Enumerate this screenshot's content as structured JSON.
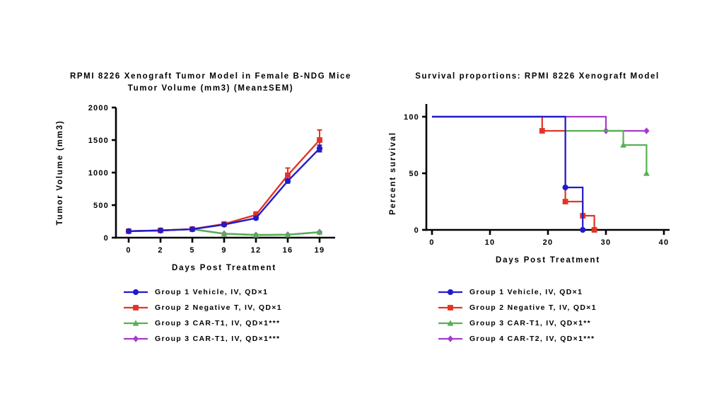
{
  "figure": {
    "background": "#ffffff"
  },
  "colors": {
    "group1_blue": "#221bc9",
    "group2_red": "#e23426",
    "group3_green": "#55b054",
    "group4_purple": "#a43bcb",
    "axis_black": "#000000"
  },
  "chart_data": [
    {
      "type": "line",
      "x_mode": "categorical",
      "title_lines": [
        "RPMI 8226 Xenograft Tumor Model in Female B-NDG Mice",
        "Tumor Volume (mm3) (Mean±SEM)"
      ],
      "xlabel": "Days Post Treatment",
      "ylabel": "Tumor Volume (mm3)",
      "categories": [
        0,
        2,
        5,
        9,
        12,
        16,
        19
      ],
      "ylim": [
        0,
        2000
      ],
      "yticks": [
        0,
        500,
        1000,
        1500,
        2000
      ],
      "grid": false,
      "legend_position": "bottom-left",
      "series": [
        {
          "name": "Group 1 Vehicle, IV, QD×1",
          "color": "group1_blue",
          "marker": "circle",
          "values": [
            100,
            110,
            130,
            200,
            300,
            870,
            1370
          ],
          "sem": [
            0,
            0,
            0,
            0,
            20,
            30,
            50
          ]
        },
        {
          "name": "Group 2 Negative T, IV, QD×1",
          "color": "group2_red",
          "marker": "square",
          "values": [
            100,
            112,
            132,
            210,
            350,
            960,
            1500
          ],
          "sem": [
            0,
            0,
            0,
            15,
            45,
            110,
            155
          ]
        },
        {
          "name": "Group 3 CAR-T1, IV, QD×1***",
          "color": "group3_green",
          "marker": "triangle",
          "values": [
            100,
            110,
            130,
            60,
            42,
            45,
            85
          ],
          "sem": [
            0,
            0,
            0,
            0,
            0,
            0,
            0
          ]
        },
        {
          "name": "Group 3 CAR-T1, IV, QD×1***",
          "color": "group4_purple",
          "marker": "diamond",
          "values": [
            100,
            110,
            130,
            60,
            42,
            45,
            85
          ],
          "sem": [
            0,
            0,
            0,
            0,
            0,
            0,
            0
          ]
        }
      ]
    },
    {
      "type": "step",
      "x_mode": "linear",
      "title_lines": [
        "Survival proportions: RPMI 8226 Xenograft Model"
      ],
      "xlabel": "Days Post Treatment",
      "ylabel": "Percent survival",
      "xlim": [
        0,
        40
      ],
      "xticks": [
        0,
        10,
        20,
        30,
        40
      ],
      "ylim": [
        0,
        100
      ],
      "yticks": [
        0,
        50,
        100
      ],
      "grid": false,
      "legend_position": "bottom-left",
      "series": [
        {
          "name": "Group 1 Vehicle, IV, QD×1",
          "color": "group1_blue",
          "marker": "circle",
          "points": [
            [
              0,
              100
            ],
            [
              23,
              100
            ],
            [
              23,
              37.5
            ],
            [
              26,
              37.5
            ],
            [
              26,
              0
            ]
          ],
          "marker_points": [
            [
              23,
              37.5
            ],
            [
              26,
              0
            ]
          ]
        },
        {
          "name": "Group 2 Negative T, IV, QD×1",
          "color": "group2_red",
          "marker": "square",
          "points": [
            [
              0,
              100
            ],
            [
              19,
              100
            ],
            [
              19,
              87.5
            ],
            [
              23,
              87.5
            ],
            [
              23,
              25
            ],
            [
              26,
              25
            ],
            [
              26,
              12.5
            ],
            [
              28,
              12.5
            ],
            [
              28,
              0
            ]
          ],
          "marker_points": [
            [
              19,
              87.5
            ],
            [
              23,
              25
            ],
            [
              26,
              12.5
            ],
            [
              28,
              0
            ]
          ]
        },
        {
          "name": "Group 3 CAR-T1, IV, QD×1**",
          "color": "group3_green",
          "marker": "triangle",
          "points": [
            [
              0,
              100
            ],
            [
              23,
              100
            ],
            [
              23,
              87.5
            ],
            [
              33,
              87.5
            ],
            [
              33,
              75
            ],
            [
              37,
              75
            ],
            [
              37,
              50
            ]
          ],
          "marker_points": [
            [
              33,
              75
            ],
            [
              37,
              50
            ]
          ]
        },
        {
          "name": "Group 4 CAR-T2, IV, QD×1***",
          "color": "group4_purple",
          "marker": "diamond",
          "points": [
            [
              0,
              100
            ],
            [
              30,
              100
            ],
            [
              30,
              87.5
            ],
            [
              37,
              87.5
            ]
          ],
          "marker_points": [
            [
              30,
              87.5
            ],
            [
              37,
              87.5
            ]
          ]
        }
      ]
    }
  ]
}
